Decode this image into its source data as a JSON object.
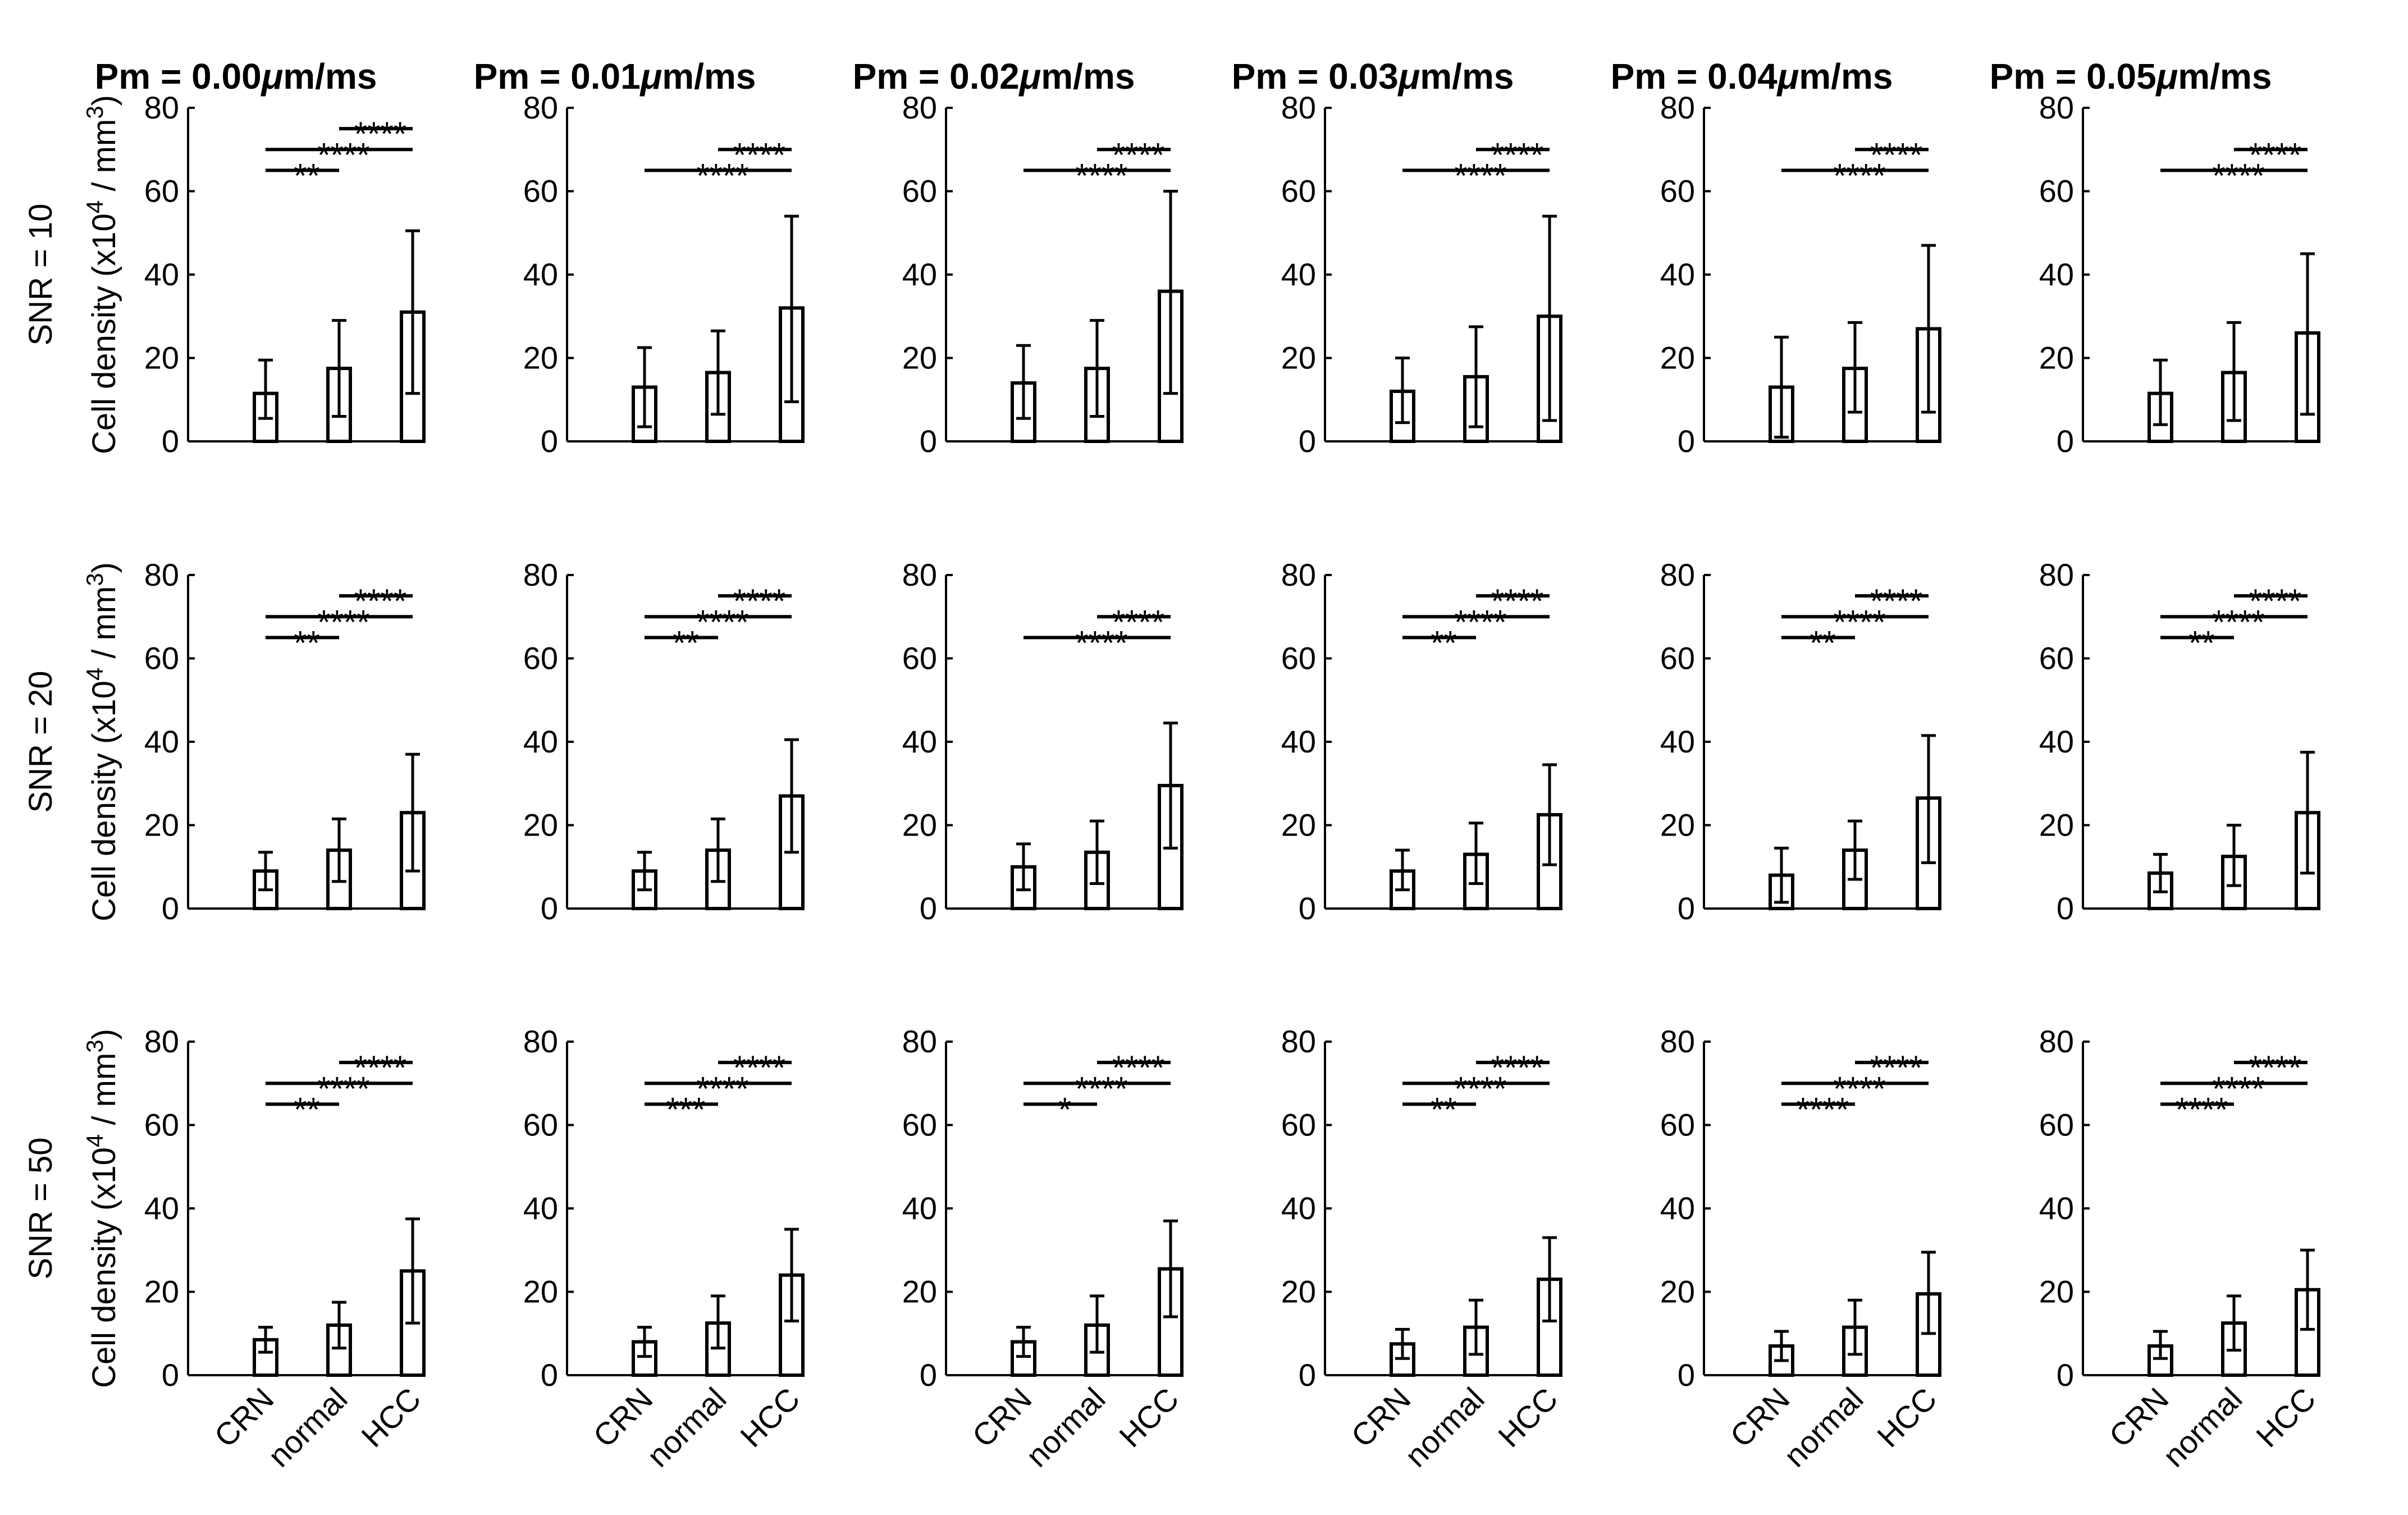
{
  "figure": {
    "y_axis_label_main": "Cell density (x10",
    "y_axis_label_exp4": "4",
    "y_axis_label_mid": " / mm",
    "y_axis_label_exp3": "3",
    "y_axis_label_close": ")",
    "unit_mu": "μ",
    "unit_rest": "m/ms",
    "col_titles": [
      "Pm = 0.00",
      "Pm = 0.01",
      "Pm = 0.02",
      "Pm = 0.03",
      "Pm = 0.04",
      "Pm = 0.05"
    ],
    "row_titles": [
      "SNR = 10",
      "SNR = 20",
      "SNR = 50"
    ]
  },
  "chart_data": {
    "type": "bar",
    "categories": [
      "CRN",
      "normal",
      "HCC"
    ],
    "ylim": [
      0,
      80
    ],
    "yticks": [
      0,
      20,
      40,
      60,
      80
    ],
    "ylabel": "Cell density (x10^4 / mm^3)",
    "panels": [
      {
        "row": 0,
        "col": 0,
        "values": [
          11.5,
          17.5,
          31
        ],
        "lo": [
          5.5,
          6,
          11.5
        ],
        "hi": [
          19.5,
          29,
          50.5
        ],
        "sig": [
          {
            "a": 0,
            "b": 1,
            "label": "**",
            "level": 0
          },
          {
            "a": 0,
            "b": 2,
            "label": "****",
            "level": 1
          },
          {
            "a": 1,
            "b": 2,
            "label": "****",
            "level": 2
          }
        ]
      },
      {
        "row": 0,
        "col": 1,
        "values": [
          13,
          16.5,
          32
        ],
        "lo": [
          3.5,
          6.5,
          9.5
        ],
        "hi": [
          22.5,
          26.5,
          54
        ],
        "sig": [
          {
            "a": 0,
            "b": 2,
            "label": "****",
            "level": 0
          },
          {
            "a": 1,
            "b": 2,
            "label": "****",
            "level": 1
          }
        ]
      },
      {
        "row": 0,
        "col": 2,
        "values": [
          14,
          17.5,
          36
        ],
        "lo": [
          5.5,
          6,
          11.5
        ],
        "hi": [
          23,
          29,
          60
        ],
        "sig": [
          {
            "a": 0,
            "b": 2,
            "label": "****",
            "level": 0
          },
          {
            "a": 1,
            "b": 2,
            "label": "****",
            "level": 1
          }
        ]
      },
      {
        "row": 0,
        "col": 3,
        "values": [
          12,
          15.5,
          30
        ],
        "lo": [
          4.5,
          3.5,
          5
        ],
        "hi": [
          20,
          27.5,
          54
        ],
        "sig": [
          {
            "a": 0,
            "b": 2,
            "label": "****",
            "level": 0
          },
          {
            "a": 1,
            "b": 2,
            "label": "****",
            "level": 1
          }
        ]
      },
      {
        "row": 0,
        "col": 4,
        "values": [
          13,
          17.5,
          27
        ],
        "lo": [
          1,
          7,
          7
        ],
        "hi": [
          25,
          28.5,
          47
        ],
        "sig": [
          {
            "a": 0,
            "b": 2,
            "label": "****",
            "level": 0
          },
          {
            "a": 1,
            "b": 2,
            "label": "****",
            "level": 1
          }
        ]
      },
      {
        "row": 0,
        "col": 5,
        "values": [
          11.5,
          16.5,
          26
        ],
        "lo": [
          4,
          5,
          6.5
        ],
        "hi": [
          19.5,
          28.5,
          45
        ],
        "sig": [
          {
            "a": 0,
            "b": 2,
            "label": "****",
            "level": 0
          },
          {
            "a": 1,
            "b": 2,
            "label": "****",
            "level": 1
          }
        ]
      },
      {
        "row": 1,
        "col": 0,
        "values": [
          9,
          14,
          23
        ],
        "lo": [
          4.5,
          6.5,
          9
        ],
        "hi": [
          13.5,
          21.5,
          37
        ],
        "sig": [
          {
            "a": 0,
            "b": 1,
            "label": "**",
            "level": 0
          },
          {
            "a": 0,
            "b": 2,
            "label": "****",
            "level": 1
          },
          {
            "a": 1,
            "b": 2,
            "label": "****",
            "level": 2
          }
        ]
      },
      {
        "row": 1,
        "col": 1,
        "values": [
          9,
          14,
          27
        ],
        "lo": [
          4.5,
          6.5,
          13.5
        ],
        "hi": [
          13.5,
          21.5,
          40.5
        ],
        "sig": [
          {
            "a": 0,
            "b": 1,
            "label": "**",
            "level": 0
          },
          {
            "a": 0,
            "b": 2,
            "label": "****",
            "level": 1
          },
          {
            "a": 1,
            "b": 2,
            "label": "****",
            "level": 2
          }
        ]
      },
      {
        "row": 1,
        "col": 2,
        "values": [
          10,
          13.5,
          29.5
        ],
        "lo": [
          4.5,
          6,
          14.5
        ],
        "hi": [
          15.5,
          21,
          44.5
        ],
        "sig": [
          {
            "a": 0,
            "b": 2,
            "label": "****",
            "level": 0
          },
          {
            "a": 1,
            "b": 2,
            "label": "****",
            "level": 1
          }
        ]
      },
      {
        "row": 1,
        "col": 3,
        "values": [
          9,
          13,
          22.5
        ],
        "lo": [
          4.5,
          6,
          10.5
        ],
        "hi": [
          14,
          20.5,
          34.5
        ],
        "sig": [
          {
            "a": 0,
            "b": 1,
            "label": "**",
            "level": 0
          },
          {
            "a": 0,
            "b": 2,
            "label": "****",
            "level": 1
          },
          {
            "a": 1,
            "b": 2,
            "label": "****",
            "level": 2
          }
        ]
      },
      {
        "row": 1,
        "col": 4,
        "values": [
          8,
          14,
          26.5
        ],
        "lo": [
          1.5,
          7,
          11
        ],
        "hi": [
          14.5,
          21,
          41.5
        ],
        "sig": [
          {
            "a": 0,
            "b": 1,
            "label": "**",
            "level": 0
          },
          {
            "a": 0,
            "b": 2,
            "label": "****",
            "level": 1
          },
          {
            "a": 1,
            "b": 2,
            "label": "****",
            "level": 2
          }
        ]
      },
      {
        "row": 1,
        "col": 5,
        "values": [
          8.5,
          12.5,
          23
        ],
        "lo": [
          4,
          5.5,
          8.5
        ],
        "hi": [
          13,
          20,
          37.5
        ],
        "sig": [
          {
            "a": 0,
            "b": 1,
            "label": "**",
            "level": 0
          },
          {
            "a": 0,
            "b": 2,
            "label": "****",
            "level": 1
          },
          {
            "a": 1,
            "b": 2,
            "label": "****",
            "level": 2
          }
        ]
      },
      {
        "row": 2,
        "col": 0,
        "values": [
          8.5,
          12,
          25
        ],
        "lo": [
          5.5,
          6.5,
          12.5
        ],
        "hi": [
          11.5,
          17.5,
          37.5
        ],
        "sig": [
          {
            "a": 0,
            "b": 1,
            "label": "**",
            "level": 0
          },
          {
            "a": 0,
            "b": 2,
            "label": "****",
            "level": 1
          },
          {
            "a": 1,
            "b": 2,
            "label": "****",
            "level": 2
          }
        ]
      },
      {
        "row": 2,
        "col": 1,
        "values": [
          8,
          12.5,
          24
        ],
        "lo": [
          4.5,
          6.5,
          13
        ],
        "hi": [
          11.5,
          19,
          35
        ],
        "sig": [
          {
            "a": 0,
            "b": 1,
            "label": "***",
            "level": 0
          },
          {
            "a": 0,
            "b": 2,
            "label": "****",
            "level": 1
          },
          {
            "a": 1,
            "b": 2,
            "label": "****",
            "level": 2
          }
        ]
      },
      {
        "row": 2,
        "col": 2,
        "values": [
          8,
          12,
          25.5
        ],
        "lo": [
          4.5,
          5.5,
          14
        ],
        "hi": [
          11.5,
          19,
          37
        ],
        "sig": [
          {
            "a": 0,
            "b": 1,
            "label": "*",
            "level": 0
          },
          {
            "a": 0,
            "b": 2,
            "label": "****",
            "level": 1
          },
          {
            "a": 1,
            "b": 2,
            "label": "****",
            "level": 2
          }
        ]
      },
      {
        "row": 2,
        "col": 3,
        "values": [
          7.5,
          11.5,
          23
        ],
        "lo": [
          4,
          5,
          13
        ],
        "hi": [
          11,
          18,
          33
        ],
        "sig": [
          {
            "a": 0,
            "b": 1,
            "label": "**",
            "level": 0
          },
          {
            "a": 0,
            "b": 2,
            "label": "****",
            "level": 1
          },
          {
            "a": 1,
            "b": 2,
            "label": "****",
            "level": 2
          }
        ]
      },
      {
        "row": 2,
        "col": 4,
        "values": [
          7,
          11.5,
          19.5
        ],
        "lo": [
          3.5,
          5,
          10
        ],
        "hi": [
          10.5,
          18,
          29.5
        ],
        "sig": [
          {
            "a": 0,
            "b": 1,
            "label": "****",
            "level": 0
          },
          {
            "a": 0,
            "b": 2,
            "label": "****",
            "level": 1
          },
          {
            "a": 1,
            "b": 2,
            "label": "****",
            "level": 2
          }
        ]
      },
      {
        "row": 2,
        "col": 5,
        "values": [
          7,
          12.5,
          20.5
        ],
        "lo": [
          4,
          6,
          11
        ],
        "hi": [
          10.5,
          19,
          30
        ],
        "sig": [
          {
            "a": 0,
            "b": 1,
            "label": "****",
            "level": 0
          },
          {
            "a": 0,
            "b": 2,
            "label": "****",
            "level": 1
          },
          {
            "a": 1,
            "b": 2,
            "label": "****",
            "level": 2
          }
        ]
      }
    ]
  }
}
